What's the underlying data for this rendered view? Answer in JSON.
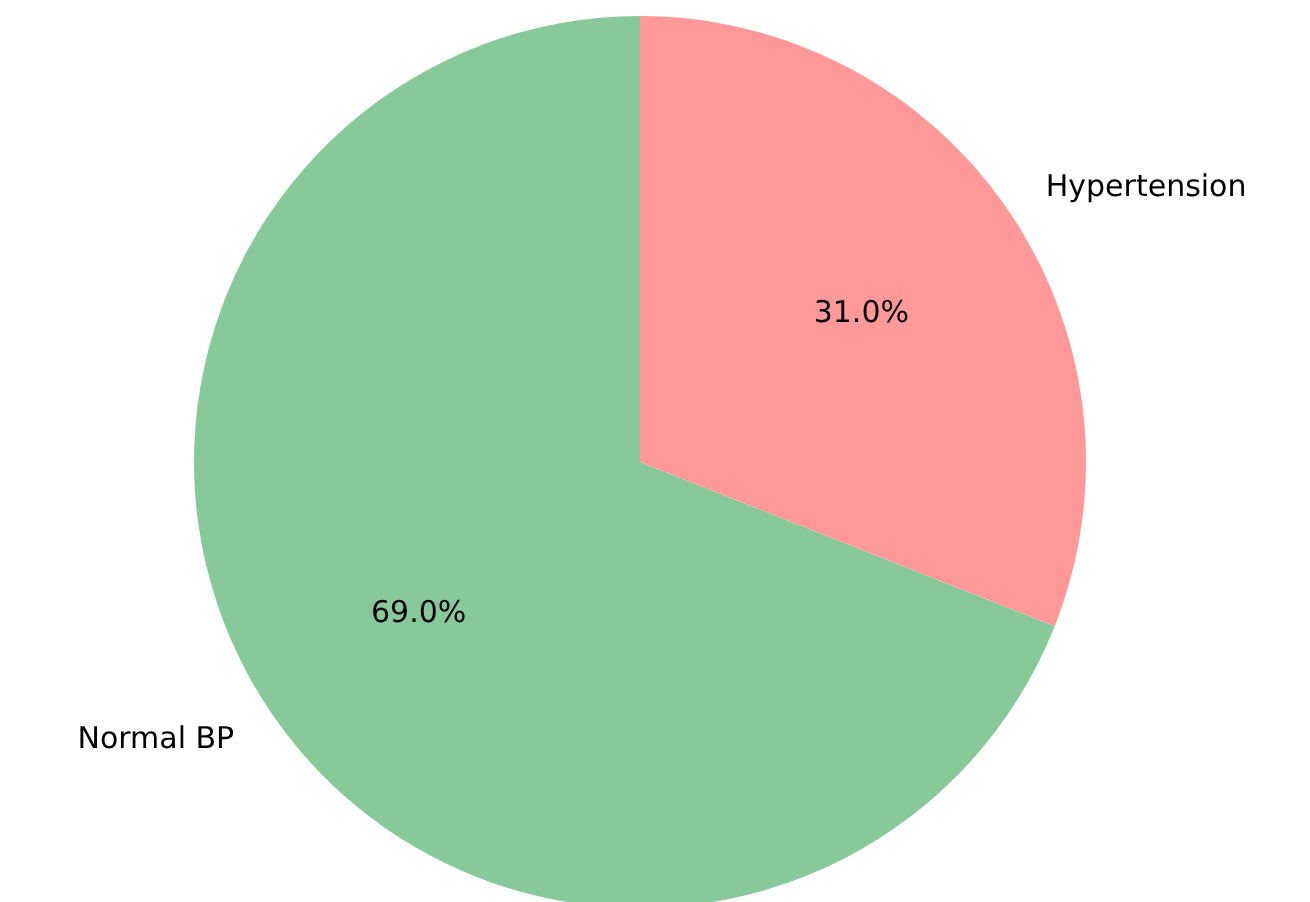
{
  "chart_data": {
    "type": "pie",
    "categories": [
      "Normal BP",
      "Hypertension"
    ],
    "values": [
      69,
      31
    ],
    "colors": [
      "#88c999",
      "#ff9999"
    ],
    "value_labels": [
      "69.0%",
      "31.0%"
    ],
    "legend": false
  }
}
